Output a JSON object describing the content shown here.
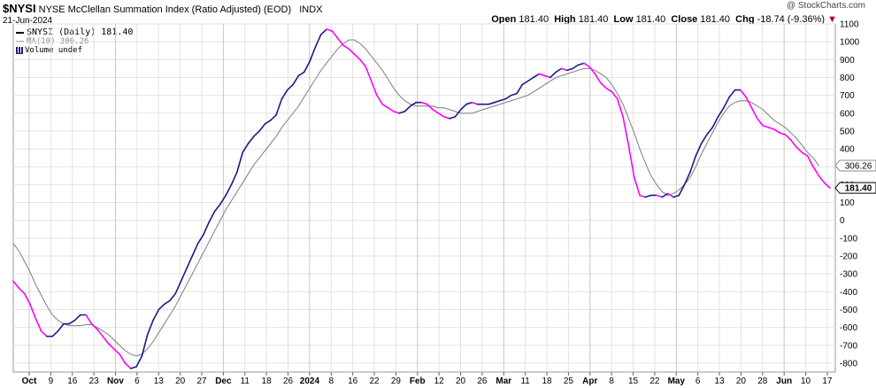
{
  "header": {
    "symbol": "$NYSI",
    "name": "NYSE McClellan Summation Index (Ratio Adjusted) (EOD)",
    "exchange": "INDX",
    "date": "21-Jun-2024",
    "watermark": "@ StockCharts.com",
    "open_label": "Open",
    "open": "181.40",
    "high_label": "High",
    "high": "181.40",
    "low_label": "Low",
    "low": "181.40",
    "close_label": "Close",
    "close": "181.40",
    "chg_label": "Chg",
    "chg": "-18.74 (-9.36%)",
    "chg_arrow": "▼"
  },
  "legend": {
    "series1": "$NYSI (Daily) 181.40",
    "series2": "MA(10) 306.26",
    "volume": "Volume undef"
  },
  "colors": {
    "up": "#1c1c84",
    "down": "#ff00ff",
    "ma": "#888888",
    "grid": "#e2e2e2",
    "chg_arrow": "#b0002a"
  },
  "chart_data": {
    "type": "line",
    "ylim": [
      -850,
      1100
    ],
    "y_ticks": [
      -800,
      -700,
      -600,
      -500,
      -400,
      -300,
      -200,
      -100,
      0,
      100,
      200,
      300,
      400,
      500,
      600,
      700,
      800,
      900,
      1000,
      1100
    ],
    "x_tick_labels": [
      "Oct",
      "9",
      "16",
      "23",
      "Nov",
      "6",
      "13",
      "20",
      "27",
      "Dec",
      "11",
      "18",
      "26",
      "2024",
      "8",
      "16",
      "22",
      "29",
      "Feb",
      "12",
      "20",
      "26",
      "Mar",
      "11",
      "18",
      "25",
      "Apr",
      "8",
      "15",
      "22",
      "May",
      "6",
      "13",
      "20",
      "28",
      "Jun",
      "10",
      "17"
    ],
    "bold_tick_labels": [
      "Oct",
      "Nov",
      "Dec",
      "2024",
      "Feb",
      "Mar",
      "Apr",
      "May",
      "Jun"
    ],
    "last_value_label": "181.40",
    "ma_value_label": "306.26",
    "series": [
      {
        "name": "$NYSI (Daily)",
        "values": [
          -340,
          -380,
          -410,
          -470,
          -550,
          -620,
          -650,
          -650,
          -620,
          -580,
          -580,
          -560,
          -530,
          -530,
          -580,
          -610,
          -650,
          -690,
          -720,
          -750,
          -800,
          -830,
          -820,
          -760,
          -640,
          -560,
          -500,
          -470,
          -450,
          -410,
          -340,
          -270,
          -200,
          -130,
          -80,
          -10,
          50,
          90,
          140,
          200,
          270,
          380,
          430,
          470,
          500,
          540,
          560,
          590,
          680,
          730,
          760,
          810,
          830,
          890,
          970,
          1040,
          1070,
          1060,
          1020,
          980,
          960,
          930,
          900,
          860,
          780,
          700,
          650,
          630,
          610,
          600,
          610,
          640,
          660,
          660,
          650,
          620,
          600,
          580,
          570,
          580,
          620,
          650,
          660,
          650,
          650,
          650,
          660,
          670,
          680,
          700,
          710,
          760,
          780,
          800,
          820,
          810,
          800,
          830,
          850,
          840,
          850,
          870,
          880,
          860,
          820,
          770,
          740,
          720,
          680,
          580,
          420,
          240,
          140,
          130,
          140,
          140,
          130,
          150,
          130,
          140,
          200,
          270,
          360,
          430,
          480,
          520,
          580,
          630,
          690,
          730,
          730,
          690,
          630,
          570,
          530,
          520,
          510,
          490,
          480,
          450,
          410,
          380,
          360,
          300,
          250,
          210,
          181.4
        ]
      },
      {
        "name": "MA(10)",
        "values": [
          -130,
          -170,
          -230,
          -290,
          -360,
          -420,
          -480,
          -530,
          -560,
          -580,
          -590,
          -590,
          -590,
          -585,
          -585,
          -600,
          -620,
          -640,
          -670,
          -700,
          -730,
          -750,
          -760,
          -750,
          -720,
          -680,
          -630,
          -580,
          -530,
          -480,
          -420,
          -360,
          -300,
          -240,
          -180,
          -120,
          -60,
          0,
          60,
          110,
          160,
          210,
          260,
          310,
          350,
          390,
          430,
          470,
          520,
          560,
          600,
          640,
          690,
          740,
          790,
          840,
          880,
          920,
          960,
          990,
          1010,
          1010,
          990,
          960,
          920,
          880,
          840,
          790,
          740,
          700,
          670,
          650,
          640,
          640,
          640,
          640,
          630,
          630,
          620,
          610,
          600,
          600,
          600,
          610,
          620,
          630,
          640,
          650,
          660,
          670,
          680,
          690,
          700,
          720,
          740,
          760,
          780,
          800,
          810,
          820,
          830,
          840,
          850,
          850,
          840,
          820,
          800,
          760,
          710,
          650,
          570,
          490,
          400,
          320,
          250,
          200,
          160,
          140,
          150,
          170,
          200,
          240,
          300,
          370,
          430,
          490,
          550,
          600,
          640,
          660,
          670,
          670,
          660,
          640,
          620,
          590,
          560,
          540,
          520,
          490,
          460,
          420,
          380,
          350,
          306.26
        ]
      }
    ]
  }
}
